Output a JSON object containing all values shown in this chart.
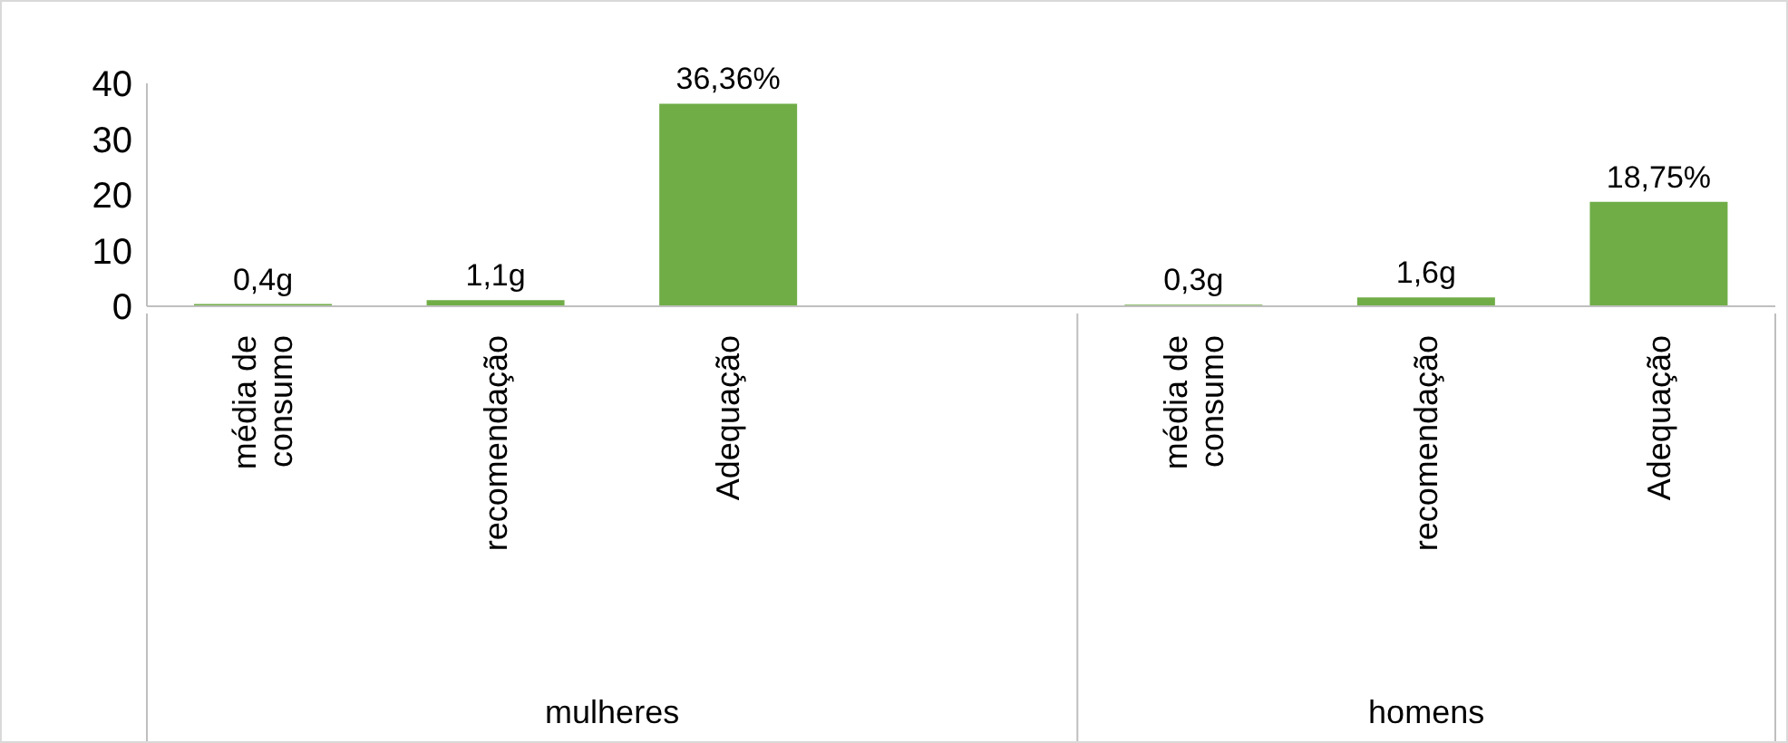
{
  "chart_data": {
    "type": "bar",
    "categories": [
      "média de consumo",
      "recomendação",
      "Adequação",
      null,
      "média de consumo",
      "recomendação",
      "Adequação"
    ],
    "values": [
      0.4,
      1.1,
      36.36,
      null,
      0.3,
      1.6,
      18.75
    ],
    "value_labels": [
      "0,4g",
      "1,1g",
      "36,36%",
      null,
      "0,3g",
      "1,6g",
      "18,75%"
    ],
    "color": "#70ad47",
    "ylim": [
      0,
      40
    ],
    "yticks": [
      0,
      10,
      20,
      30,
      40
    ],
    "grid": false,
    "annotations": [
      "mulheres",
      "homens"
    ]
  }
}
